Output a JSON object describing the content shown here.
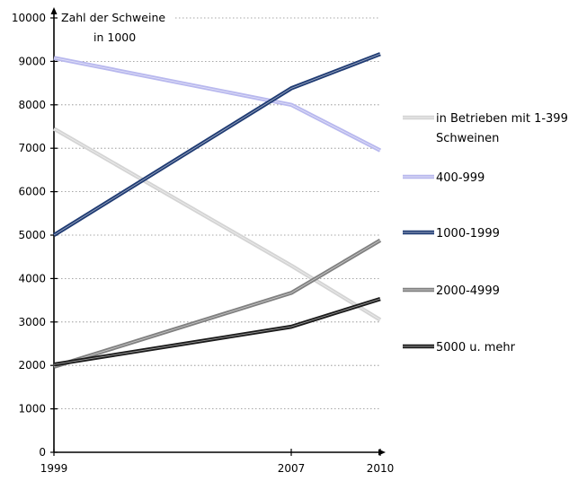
{
  "chart_data": {
    "type": "line",
    "ylabel": [
      "Zahl der Schweine",
      "in 1000"
    ],
    "x": [
      1999,
      2007,
      2010
    ],
    "x_tick_labels": [
      "1999",
      "2007",
      "2010"
    ],
    "ylim": [
      0,
      10000
    ],
    "y_ticks": [
      0,
      1000,
      2000,
      3000,
      4000,
      5000,
      6000,
      7000,
      8000,
      9000,
      10000
    ],
    "y_tick_labels": [
      "0",
      "1000",
      "2000",
      "3000",
      "4000",
      "5000",
      "6000",
      "7000",
      "8000",
      "9000",
      "10000"
    ],
    "grid": true,
    "legend_position": "right",
    "series": [
      {
        "name": [
          "in Betrieben mit 1-399",
          "Schweinen"
        ],
        "values": [
          7450,
          4300,
          3050
        ],
        "color": "#d4d4d4"
      },
      {
        "name": [
          "400-999"
        ],
        "values": [
          9080,
          8000,
          6950
        ],
        "color": "#b8b8ee"
      },
      {
        "name": [
          "1000-1999"
        ],
        "values": [
          5000,
          8380,
          9170
        ],
        "color": "#1f3b73"
      },
      {
        "name": [
          "2000-4999"
        ],
        "values": [
          1970,
          3670,
          4880
        ],
        "color": "#808080"
      },
      {
        "name": [
          "5000 u. mehr"
        ],
        "values": [
          2020,
          2890,
          3530
        ],
        "color": "#1a1a1a"
      }
    ]
  }
}
